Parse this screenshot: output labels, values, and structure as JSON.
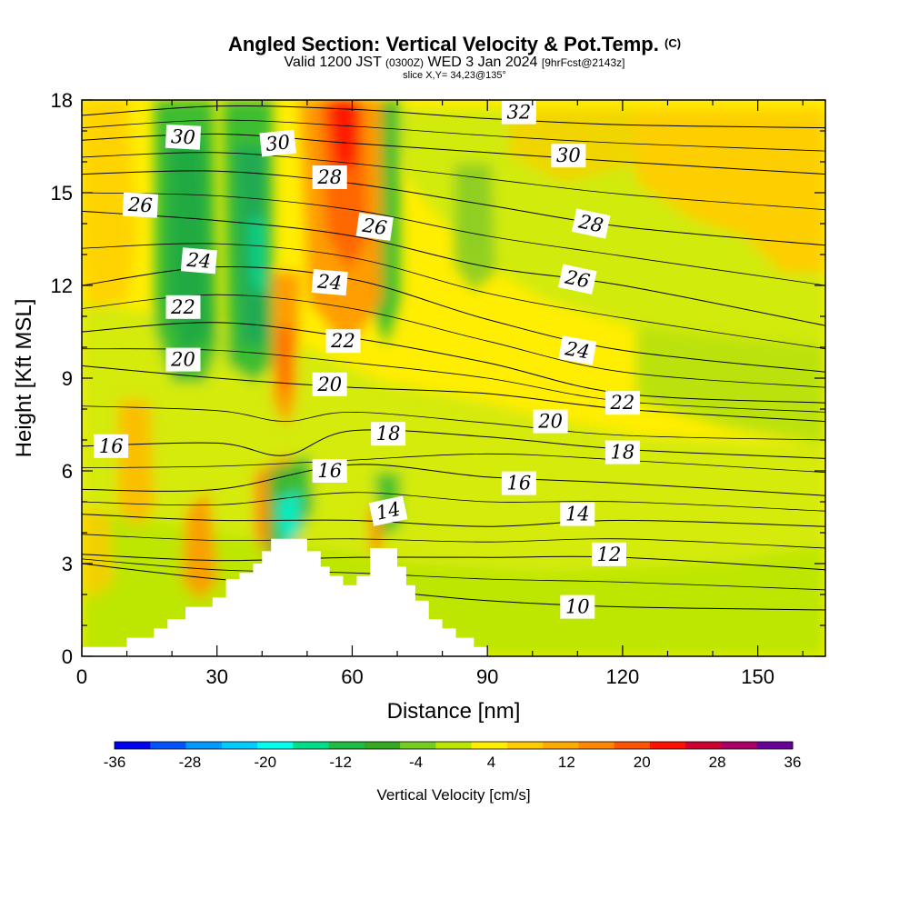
{
  "header": {
    "title_main": "Angled Section: Vertical Velocity & Pot.Temp.",
    "title_mark": "(C)",
    "valid_prefix": "Valid 1200 JST",
    "valid_utc": "(0300Z)",
    "valid_date": "WED 3 Jan 2024",
    "valid_fcst": "[9hrFcst@2143z]",
    "slice": "slice X,Y= 34,23@135°"
  },
  "chart_data": {
    "type": "heatmap",
    "xlabel": "Distance [nm]",
    "ylabel": "Height [Kft MSL]",
    "xlim": [
      0,
      165
    ],
    "ylim": [
      0,
      18
    ],
    "xticks": [
      0,
      30,
      60,
      90,
      120,
      150
    ],
    "yticks": [
      0,
      3,
      6,
      9,
      12,
      15,
      18
    ],
    "colorbar": {
      "label": "Vertical Velocity [cm/s]",
      "ticks": [
        -36,
        -28,
        -20,
        -12,
        -4,
        4,
        12,
        20,
        28,
        36
      ],
      "colors": [
        "#0000ee",
        "#0055ff",
        "#0099ff",
        "#00ccff",
        "#00ffee",
        "#00dd88",
        "#22bb44",
        "#33aa22",
        "#77cc22",
        "#bbe600",
        "#ffee00",
        "#ffcc00",
        "#ffaa00",
        "#ff8800",
        "#ff5500",
        "#ff1100",
        "#cc0033",
        "#aa0066",
        "#660099"
      ]
    },
    "terrain": [
      [
        0,
        0.3
      ],
      [
        10,
        0.3
      ],
      [
        10,
        0.6
      ],
      [
        16,
        0.6
      ],
      [
        16,
        0.9
      ],
      [
        19,
        0.9
      ],
      [
        19,
        1.2
      ],
      [
        23,
        1.2
      ],
      [
        23,
        1.6
      ],
      [
        29,
        1.6
      ],
      [
        29,
        1.9
      ],
      [
        32,
        1.9
      ],
      [
        32,
        2.5
      ],
      [
        35,
        2.5
      ],
      [
        35,
        2.7
      ],
      [
        38,
        2.7
      ],
      [
        38,
        3.0
      ],
      [
        40,
        3.0
      ],
      [
        40,
        3.4
      ],
      [
        42,
        3.4
      ],
      [
        42,
        3.8
      ],
      [
        50,
        3.8
      ],
      [
        50,
        3.4
      ],
      [
        53,
        3.4
      ],
      [
        53,
        2.9
      ],
      [
        55,
        2.9
      ],
      [
        55,
        2.6
      ],
      [
        58,
        2.6
      ],
      [
        58,
        2.3
      ],
      [
        61,
        2.3
      ],
      [
        61,
        2.6
      ],
      [
        64,
        2.6
      ],
      [
        64,
        3.5
      ],
      [
        70,
        3.5
      ],
      [
        70,
        2.9
      ],
      [
        72,
        2.9
      ],
      [
        72,
        2.3
      ],
      [
        74,
        2.3
      ],
      [
        74,
        1.8
      ],
      [
        77,
        1.8
      ],
      [
        77,
        1.2
      ],
      [
        80,
        1.2
      ],
      [
        80,
        0.9
      ],
      [
        83,
        0.9
      ],
      [
        83,
        0.6
      ],
      [
        87,
        0.6
      ],
      [
        87,
        0.3
      ],
      [
        90,
        0.3
      ],
      [
        90,
        0
      ],
      [
        0,
        0
      ]
    ],
    "isentropes": [
      {
        "theta": 10,
        "pts": [
          [
            0,
            3.0
          ],
          [
            30,
            2.5
          ],
          [
            60,
            2.2
          ],
          [
            90,
            1.8
          ],
          [
            120,
            1.6
          ],
          [
            165,
            1.5
          ]
        ]
      },
      {
        "theta": 12,
        "pts": [
          [
            0,
            3.3
          ],
          [
            30,
            3.1
          ],
          [
            60,
            3.2
          ],
          [
            90,
            3.2
          ],
          [
            120,
            3.2
          ],
          [
            165,
            2.8
          ]
        ]
      },
      {
        "theta": 14,
        "pts": [
          [
            0,
            4.6
          ],
          [
            30,
            4.4
          ],
          [
            60,
            4.4
          ],
          [
            90,
            4.2
          ],
          [
            120,
            4.4
          ],
          [
            165,
            4.2
          ]
        ]
      },
      {
        "theta": 16,
        "pts": [
          [
            0,
            5.4
          ],
          [
            30,
            5.4
          ],
          [
            60,
            6.2
          ],
          [
            90,
            5.8
          ],
          [
            120,
            5.6
          ],
          [
            165,
            5.2
          ]
        ]
      },
      {
        "theta": 18,
        "pts": [
          [
            0,
            6.8
          ],
          [
            30,
            6.9
          ],
          [
            45,
            6.5
          ],
          [
            60,
            7.3
          ],
          [
            90,
            7.1
          ],
          [
            120,
            6.7
          ],
          [
            165,
            6.4
          ]
        ]
      },
      {
        "theta": 20,
        "pts": [
          [
            0,
            9.4
          ],
          [
            30,
            9.0
          ],
          [
            60,
            8.7
          ],
          [
            90,
            8.5
          ],
          [
            120,
            8.0
          ],
          [
            165,
            7.6
          ]
        ]
      },
      {
        "theta": 22,
        "pts": [
          [
            0,
            10.5
          ],
          [
            30,
            10.8
          ],
          [
            60,
            10.3
          ],
          [
            90,
            9.5
          ],
          [
            120,
            8.5
          ],
          [
            165,
            8.2
          ]
        ]
      },
      {
        "theta": 24,
        "pts": [
          [
            0,
            12.0
          ],
          [
            30,
            12.6
          ],
          [
            60,
            12.2
          ],
          [
            90,
            10.9
          ],
          [
            120,
            9.9
          ],
          [
            165,
            9.2
          ]
        ]
      },
      {
        "theta": 26,
        "pts": [
          [
            0,
            14.4
          ],
          [
            30,
            14.1
          ],
          [
            60,
            13.6
          ],
          [
            90,
            12.6
          ],
          [
            120,
            12.0
          ],
          [
            165,
            10.7
          ]
        ]
      },
      {
        "theta": 28,
        "pts": [
          [
            0,
            15.6
          ],
          [
            30,
            15.7
          ],
          [
            60,
            15.3
          ],
          [
            90,
            14.6
          ],
          [
            120,
            13.9
          ],
          [
            165,
            13.3
          ]
        ]
      },
      {
        "theta": 30,
        "pts": [
          [
            0,
            16.7
          ],
          [
            30,
            16.9
          ],
          [
            60,
            16.6
          ],
          [
            90,
            16.3
          ],
          [
            120,
            16.0
          ],
          [
            165,
            15.6
          ]
        ]
      },
      {
        "theta": 32,
        "pts": [
          [
            0,
            17.5
          ],
          [
            30,
            17.8
          ],
          [
            60,
            17.7
          ],
          [
            90,
            17.4
          ],
          [
            120,
            17.2
          ],
          [
            165,
            17.1
          ]
        ]
      }
    ],
    "contour_labels": [
      {
        "text": "30",
        "x": 22.5,
        "y": 16.8,
        "angle": 3
      },
      {
        "text": "30",
        "x": 43.5,
        "y": 16.6,
        "angle": -6
      },
      {
        "text": "26",
        "x": 13,
        "y": 14.6,
        "angle": 3
      },
      {
        "text": "28",
        "x": 55,
        "y": 15.5,
        "angle": 0
      },
      {
        "text": "26",
        "x": 65,
        "y": 13.9,
        "angle": 8
      },
      {
        "text": "32",
        "x": 97,
        "y": 17.6,
        "angle": 0
      },
      {
        "text": "30",
        "x": 108,
        "y": 16.2,
        "angle": 0
      },
      {
        "text": "28",
        "x": 113,
        "y": 14.0,
        "angle": 12
      },
      {
        "text": "24",
        "x": 26,
        "y": 12.8,
        "angle": 5
      },
      {
        "text": "24",
        "x": 55,
        "y": 12.1,
        "angle": 5
      },
      {
        "text": "26",
        "x": 110,
        "y": 12.2,
        "angle": 12
      },
      {
        "text": "22",
        "x": 22.5,
        "y": 11.3,
        "angle": 0
      },
      {
        "text": "22",
        "x": 58,
        "y": 10.2,
        "angle": 0
      },
      {
        "text": "24",
        "x": 110,
        "y": 9.9,
        "angle": 10
      },
      {
        "text": "20",
        "x": 22.5,
        "y": 9.6,
        "angle": 0
      },
      {
        "text": "20",
        "x": 55,
        "y": 8.8,
        "angle": 0
      },
      {
        "text": "20",
        "x": 104,
        "y": 7.6,
        "angle": 0
      },
      {
        "text": "22",
        "x": 120,
        "y": 8.2,
        "angle": 0
      },
      {
        "text": "16",
        "x": 6.5,
        "y": 6.8,
        "angle": 0
      },
      {
        "text": "18",
        "x": 68,
        "y": 7.2,
        "angle": 0
      },
      {
        "text": "18",
        "x": 120,
        "y": 6.6,
        "angle": 0
      },
      {
        "text": "16",
        "x": 55,
        "y": 6.0,
        "angle": 0
      },
      {
        "text": "16",
        "x": 97,
        "y": 5.6,
        "angle": 0
      },
      {
        "text": "14",
        "x": 68,
        "y": 4.7,
        "angle": -12
      },
      {
        "text": "14",
        "x": 110,
        "y": 4.6,
        "angle": 0
      },
      {
        "text": "12",
        "x": 117,
        "y": 3.3,
        "angle": 0
      },
      {
        "text": "10",
        "x": 110,
        "y": 1.6,
        "angle": 0
      }
    ]
  }
}
